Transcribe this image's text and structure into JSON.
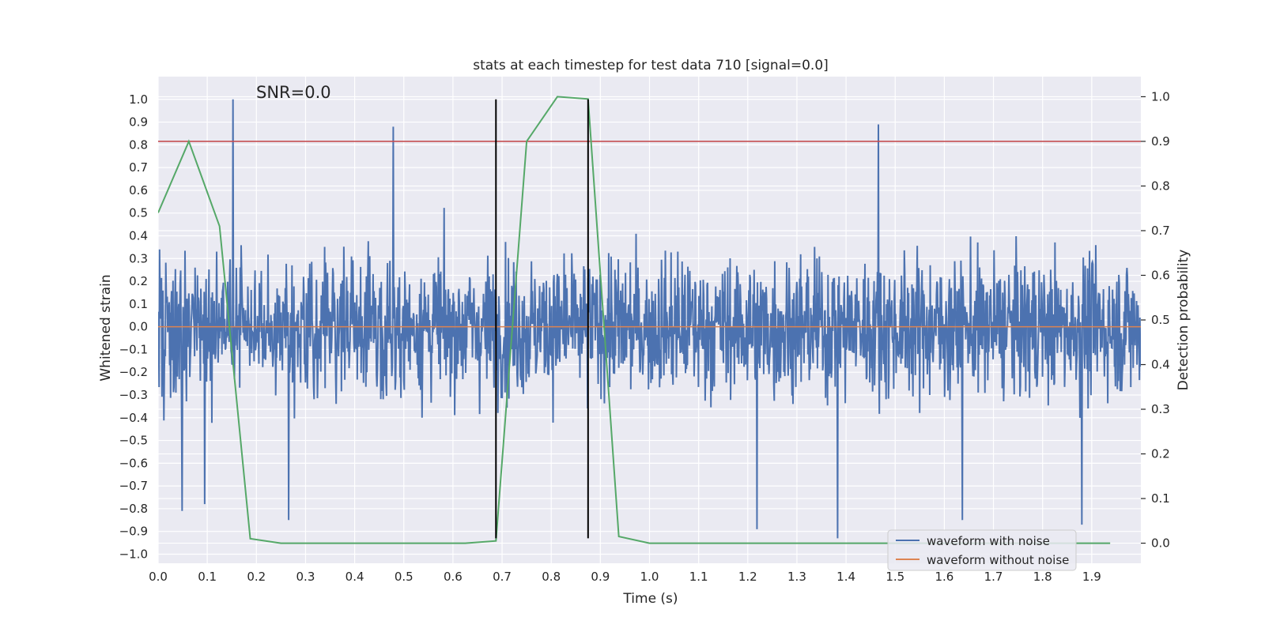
{
  "chart_data": {
    "type": "line",
    "title": "stats at each timestep for test data 710 [signal=0.0]",
    "annotation": "SNR=0.0",
    "xlabel": "Time (s)",
    "ylabel": "Whitened strain",
    "y2label": "Detection probability",
    "xlim": [
      0.0,
      2.0
    ],
    "ylim": [
      -1.04,
      1.1
    ],
    "y2lim": [
      -0.045,
      1.045
    ],
    "xticks": [
      "0.0",
      "0.1",
      "0.2",
      "0.3",
      "0.4",
      "0.5",
      "0.6",
      "0.7",
      "0.8",
      "0.9",
      "1.0",
      "1.1",
      "1.2",
      "1.3",
      "1.4",
      "1.5",
      "1.6",
      "1.7",
      "1.8",
      "1.9"
    ],
    "yticks": [
      "1.0",
      "0.9",
      "0.8",
      "0.7",
      "0.6",
      "0.5",
      "0.4",
      "0.3",
      "0.2",
      "0.1",
      "0.0",
      "−0.1",
      "−0.2",
      "−0.3",
      "−0.4",
      "−0.5",
      "−0.6",
      "−0.7",
      "−0.8",
      "−0.9",
      "−1.0"
    ],
    "y2ticks": [
      "1.0",
      "0.9",
      "0.8",
      "0.7",
      "0.6",
      "0.5",
      "0.4",
      "0.3",
      "0.2",
      "0.1",
      "0.0"
    ],
    "series": [
      {
        "name": "waveform with noise",
        "color": "#4c72b0",
        "axis": "left",
        "note": "noisy whitened strain, ~2048 samples, amplitude mostly within ±0.5 with peaks up to 1.0",
        "peaks": [
          [
            0.152,
            1.0
          ],
          [
            0.479,
            0.88
          ],
          [
            1.466,
            0.89
          ],
          [
            0.049,
            -0.81
          ],
          [
            0.095,
            -0.78
          ],
          [
            0.266,
            -0.85
          ],
          [
            1.383,
            -0.93
          ],
          [
            1.637,
            -0.85
          ],
          [
            1.88,
            -0.87
          ],
          [
            1.219,
            -0.89
          ]
        ]
      },
      {
        "name": "waveform without noise",
        "color": "#dd8452",
        "axis": "left",
        "x": [
          0.0,
          2.0
        ],
        "values": [
          0.0,
          0.0
        ]
      },
      {
        "name": "detection probability",
        "color": "#55a868",
        "axis": "right",
        "x": [
          0.0,
          0.0625,
          0.125,
          0.1875,
          0.25,
          0.3125,
          0.375,
          0.4375,
          0.5,
          0.5625,
          0.625,
          0.6875,
          0.75,
          0.8125,
          0.875,
          0.9375,
          1.0,
          1.0625,
          1.125,
          1.1875,
          1.25,
          1.3125,
          1.375,
          1.4375,
          1.5,
          1.5625,
          1.625,
          1.6875,
          1.75,
          1.8125,
          1.875,
          1.9375
        ],
        "values": [
          0.74,
          0.9,
          0.71,
          0.01,
          0.0,
          0.0,
          0.0,
          0.0,
          0.0,
          0.0,
          0.0,
          0.005,
          0.9,
          1.0,
          0.995,
          0.015,
          0.0,
          0.0,
          0.0,
          0.0,
          0.0,
          0.0,
          0.0,
          0.0,
          0.0,
          0.0,
          0.0,
          0.0,
          0.0,
          0.0,
          0.0,
          0.0
        ]
      }
    ],
    "threshold": {
      "axis": "right",
      "value": 0.9,
      "color": "#c44e52"
    },
    "vlines": {
      "x": [
        0.6875,
        0.875
      ],
      "ymin": -0.93,
      "ymax": 1.0,
      "color": "#000000"
    },
    "legend": {
      "position": "bottom-right",
      "entries": [
        {
          "label": "waveform with noise",
          "color": "#4c72b0"
        },
        {
          "label": "waveform without noise",
          "color": "#dd8452"
        }
      ]
    },
    "background": "#eaeaf2"
  }
}
